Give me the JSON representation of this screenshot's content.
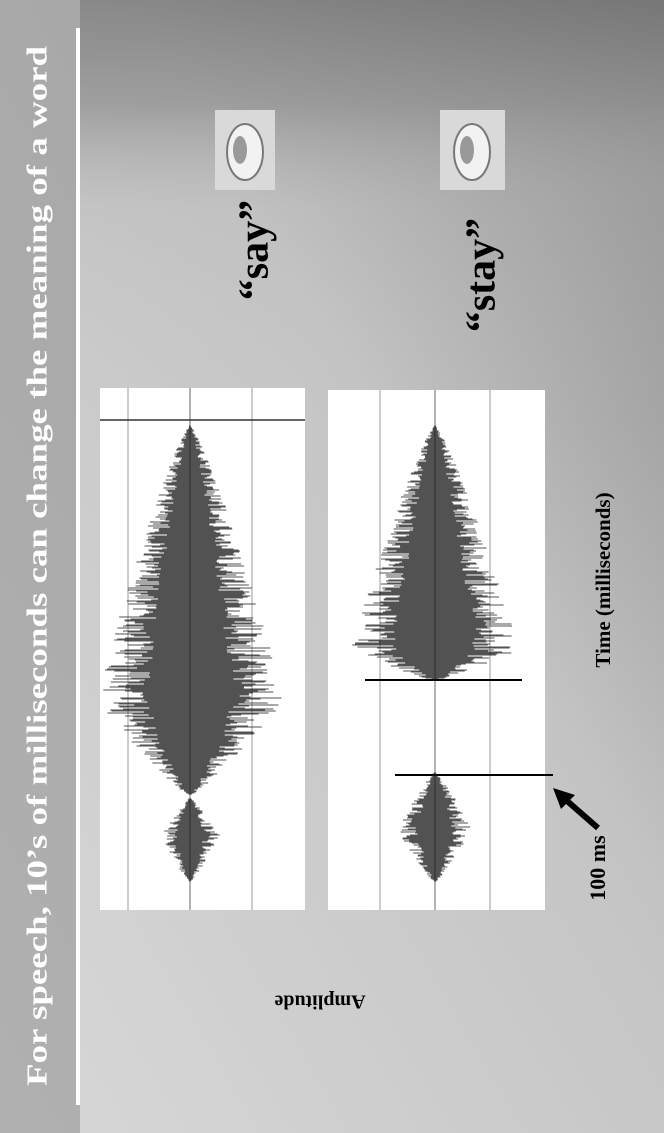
{
  "slide": {
    "title": "For speech, 10’s of milliseconds can change the meaning of a word",
    "words": [
      "“say”",
      "“stay”"
    ],
    "y_axis_label": "Amplitude",
    "x_axis_label": "Time (milliseconds)",
    "annotation": "100 ms"
  }
}
